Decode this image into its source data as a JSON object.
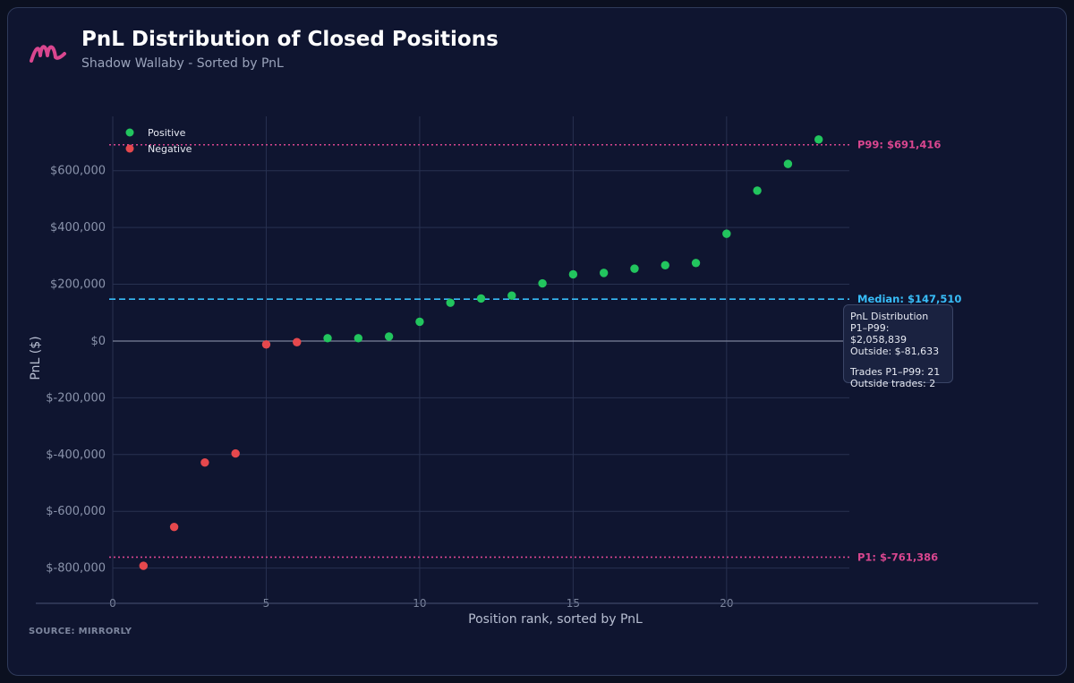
{
  "header": {
    "title": "PnL Distribution of Closed Positions",
    "subtitle": "Shadow Wallaby - Sorted by PnL"
  },
  "footer": {
    "source": "SOURCE: MIRRORLY"
  },
  "tooltip": {
    "heading": "PnL Distribution",
    "line1": "P1–P99: $2,058,839",
    "line2": "Outside: $-81,633",
    "line3": "Trades P1–P99: 21",
    "line4": "Outside trades: 2"
  },
  "colors": {
    "positive": "#22c55e",
    "negative": "#e5484d",
    "median": "#38bdf8",
    "percentile": "#d9468f",
    "zero": "#7b8299",
    "background": "#0f1530",
    "grid": "#283150"
  },
  "chart_data": {
    "type": "scatter",
    "xlabel": "Position rank, sorted by PnL",
    "ylabel": "PnL ($)",
    "xlim": [
      0,
      24
    ],
    "ylim": [
      -880000,
      760000
    ],
    "xticks": [
      0,
      5,
      10,
      15,
      20
    ],
    "yticks": [
      -800000,
      -600000,
      -400000,
      -200000,
      0,
      200000,
      400000,
      600000
    ],
    "ytick_labels": [
      "$-800,000",
      "$-600,000",
      "$-400,000",
      "$-200,000",
      "$0",
      "$200,000",
      "$400,000",
      "$600,000"
    ],
    "grid": true,
    "legend": {
      "placement": "top-left",
      "entries": [
        "Positive",
        "Negative"
      ]
    },
    "series": [
      {
        "name": "Positive",
        "x": [
          7,
          8,
          9,
          10,
          11,
          12,
          13,
          14,
          15,
          16,
          17,
          18,
          19,
          20,
          21,
          22,
          23
        ],
        "y": [
          10000,
          10000,
          16000,
          68000,
          135000,
          150000,
          160000,
          203000,
          235000,
          240000,
          255000,
          267000,
          275000,
          378000,
          530000,
          624000,
          710000
        ]
      },
      {
        "name": "Negative",
        "x": [
          1,
          2,
          3,
          4,
          5,
          6
        ],
        "y": [
          -792000,
          -655000,
          -428000,
          -396000,
          -12000,
          -4000
        ]
      }
    ],
    "reference_lines": [
      {
        "name": "p99",
        "label": "P99: $691,416",
        "value": 691416,
        "style": "dotted",
        "color": "#d9468f"
      },
      {
        "name": "median",
        "label": "Median: $147,510",
        "value": 147510,
        "style": "dashed",
        "color": "#38bdf8"
      },
      {
        "name": "p1",
        "label": "P1: $-761,386",
        "value": -761386,
        "style": "dotted",
        "color": "#d9468f"
      }
    ]
  }
}
